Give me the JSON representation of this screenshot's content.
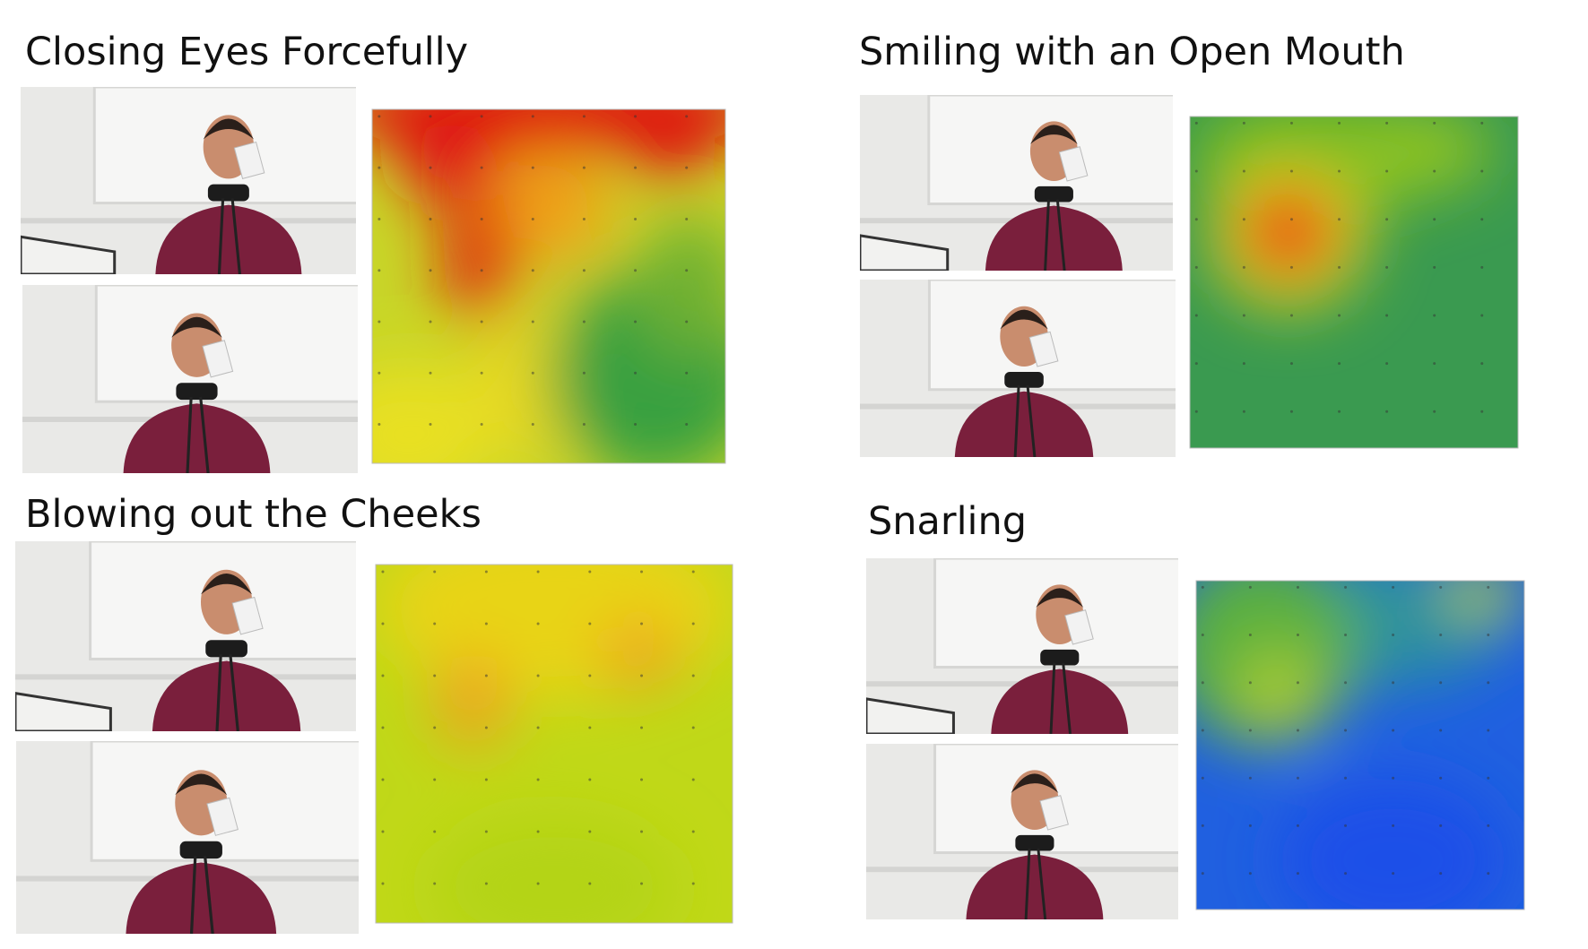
{
  "panels": [
    {
      "title": "Closing Eyes Forcefully"
    },
    {
      "title": "Smiling with an Open Mouth"
    },
    {
      "title": "Blowing out the Cheeks"
    },
    {
      "title": "Snarling"
    }
  ]
}
